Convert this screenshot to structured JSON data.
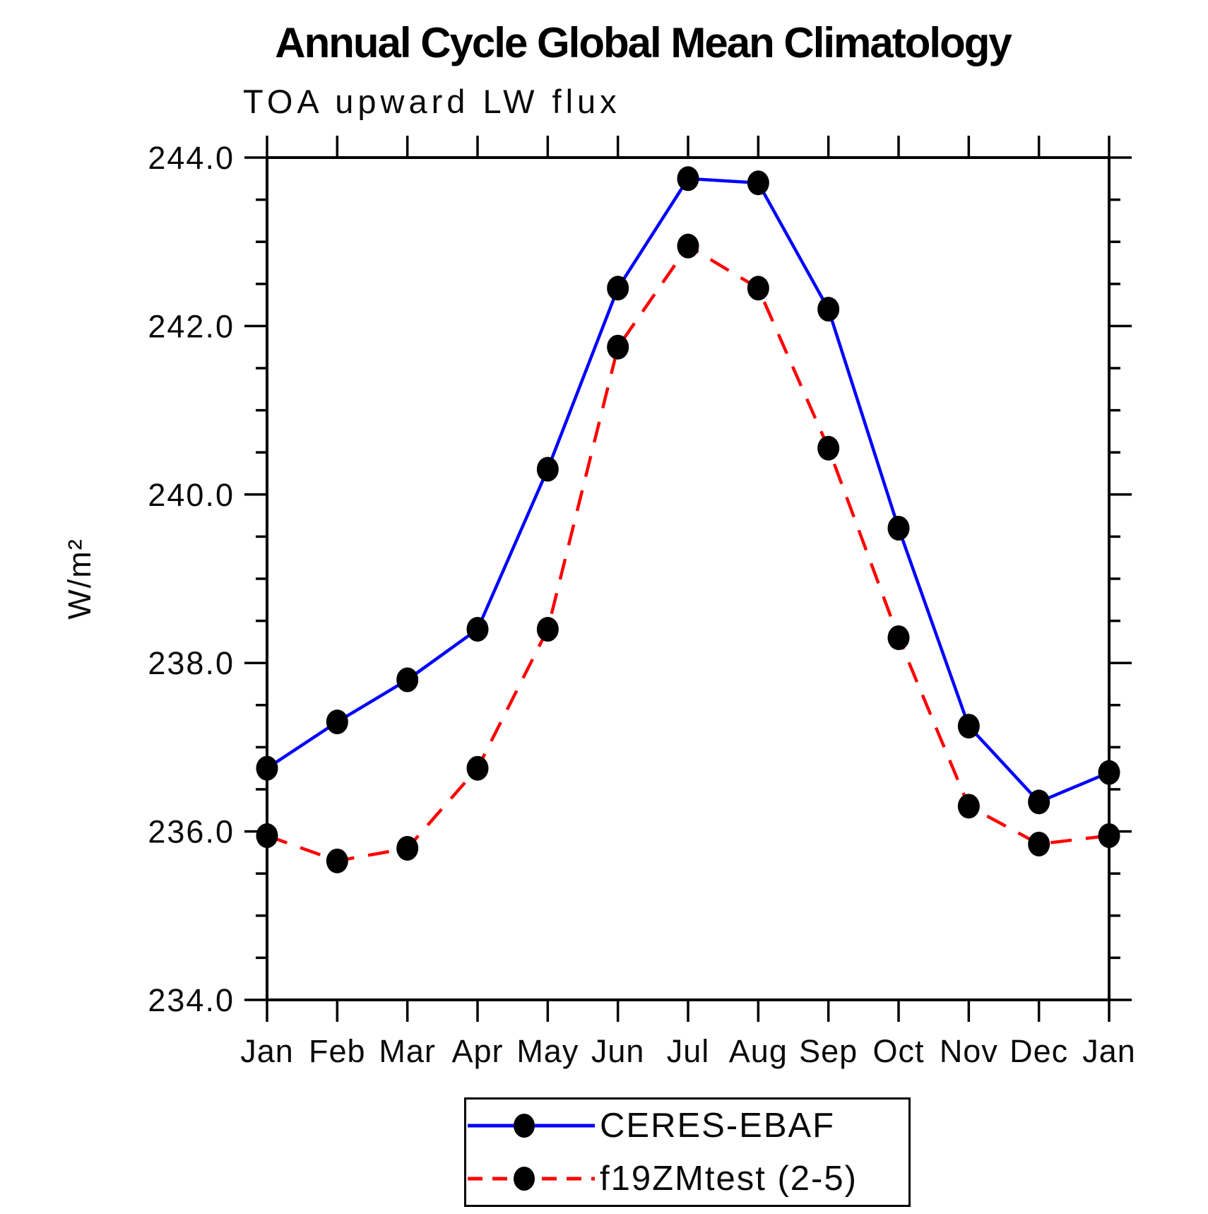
{
  "title": "Annual Cycle Global Mean Climatology",
  "subtitle": "TOA upward LW flux",
  "chart_data": {
    "type": "line",
    "title": "Annual Cycle Global Mean Climatology",
    "subtitle": "TOA upward LW flux",
    "xlabel": "",
    "ylabel": "W/m²",
    "x_categories": [
      "Jan",
      "Feb",
      "Mar",
      "Apr",
      "May",
      "Jun",
      "Jul",
      "Aug",
      "Sep",
      "Oct",
      "Nov",
      "Dec",
      "Jan"
    ],
    "ylim": [
      234.0,
      244.0
    ],
    "ytick_major_step": 2.0,
    "ytick_minor_step": 0.5,
    "ytick_labels": [
      "244.0",
      "242.0",
      "240.0",
      "238.0",
      "236.0",
      "234.0"
    ],
    "grid": false,
    "legend_position": "bottom-center",
    "series": [
      {
        "name": "CERES-EBAF",
        "line_color": "#0000ff",
        "line_style": "solid",
        "marker": "filled-circle",
        "marker_color": "#000000",
        "values": [
          236.75,
          237.3,
          237.8,
          238.4,
          240.3,
          242.45,
          243.75,
          243.7,
          242.2,
          239.6,
          237.25,
          236.35,
          236.7
        ]
      },
      {
        "name": "f19ZMtest (2-5)",
        "line_color": "#ff0000",
        "line_style": "dashed",
        "marker": "filled-circle",
        "marker_color": "#000000",
        "values": [
          235.95,
          235.65,
          235.8,
          236.75,
          238.4,
          241.75,
          242.95,
          242.45,
          240.55,
          238.3,
          236.3,
          235.85,
          235.95
        ]
      }
    ]
  }
}
